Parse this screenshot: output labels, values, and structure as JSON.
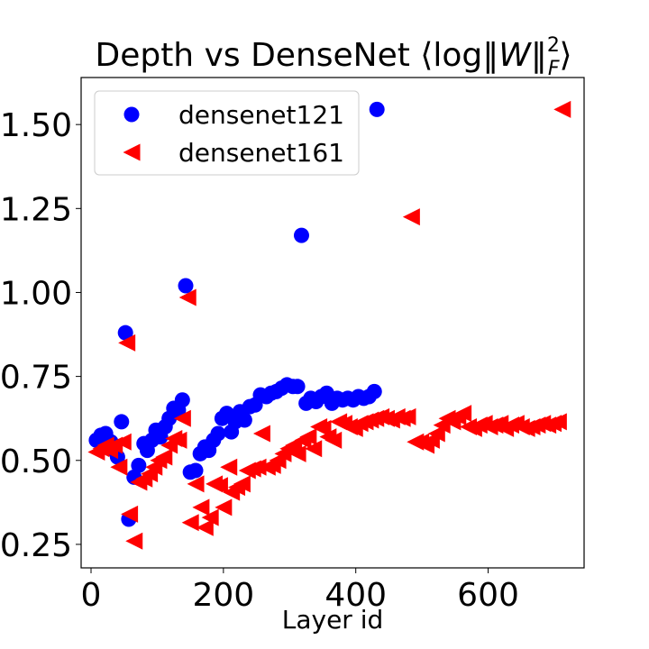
{
  "chart_data": {
    "type": "scatter",
    "title_main": "Depth vs DenseNet ⟨log‖",
    "title_var": "W",
    "title_close": "‖",
    "title_sup": "2",
    "title_sub": "F",
    "title_end": "⟩",
    "xlabel": "Layer id",
    "ylabel": "",
    "xlim": [
      -15,
      745
    ],
    "ylim": [
      0.18,
      1.64
    ],
    "xticks": [
      0,
      200,
      400,
      600
    ],
    "yticks": [
      0.25,
      0.5,
      0.75,
      1.0,
      1.25,
      1.5
    ],
    "ytick_labels": [
      "0.25",
      "0.50",
      "0.75",
      "1.00",
      "1.25",
      "1.50"
    ],
    "legend_position": "upper-left",
    "grid": false,
    "series": [
      {
        "name": "densenet121",
        "marker": "circle",
        "color": "#0000ff",
        "points": [
          [
            8,
            0.56
          ],
          [
            15,
            0.575
          ],
          [
            22,
            0.58
          ],
          [
            30,
            0.555
          ],
          [
            36,
            0.53
          ],
          [
            40,
            0.51
          ],
          [
            46,
            0.615
          ],
          [
            52,
            0.88
          ],
          [
            57,
            0.325
          ],
          [
            65,
            0.45
          ],
          [
            72,
            0.485
          ],
          [
            80,
            0.55
          ],
          [
            85,
            0.53
          ],
          [
            92,
            0.56
          ],
          [
            98,
            0.59
          ],
          [
            105,
            0.57
          ],
          [
            112,
            0.6
          ],
          [
            118,
            0.625
          ],
          [
            125,
            0.655
          ],
          [
            132,
            0.65
          ],
          [
            138,
            0.68
          ],
          [
            143,
            1.02
          ],
          [
            150,
            0.465
          ],
          [
            158,
            0.47
          ],
          [
            165,
            0.52
          ],
          [
            172,
            0.54
          ],
          [
            178,
            0.53
          ],
          [
            185,
            0.56
          ],
          [
            192,
            0.58
          ],
          [
            198,
            0.625
          ],
          [
            205,
            0.64
          ],
          [
            212,
            0.585
          ],
          [
            218,
            0.615
          ],
          [
            225,
            0.645
          ],
          [
            232,
            0.62
          ],
          [
            240,
            0.66
          ],
          [
            248,
            0.665
          ],
          [
            256,
            0.695
          ],
          [
            265,
            0.69
          ],
          [
            272,
            0.7
          ],
          [
            280,
            0.705
          ],
          [
            288,
            0.715
          ],
          [
            296,
            0.725
          ],
          [
            305,
            0.72
          ],
          [
            312,
            0.72
          ],
          [
            318,
            1.17
          ],
          [
            325,
            0.67
          ],
          [
            332,
            0.685
          ],
          [
            340,
            0.675
          ],
          [
            348,
            0.69
          ],
          [
            356,
            0.7
          ],
          [
            364,
            0.67
          ],
          [
            372,
            0.685
          ],
          [
            380,
            0.68
          ],
          [
            388,
            0.685
          ],
          [
            396,
            0.68
          ],
          [
            404,
            0.69
          ],
          [
            412,
            0.685
          ],
          [
            420,
            0.69
          ],
          [
            428,
            0.705
          ],
          [
            432,
            1.545
          ]
        ]
      },
      {
        "name": "densenet161",
        "marker": "triangle-left",
        "color": "#ff0000",
        "points": [
          [
            8,
            0.525
          ],
          [
            15,
            0.535
          ],
          [
            22,
            0.545
          ],
          [
            28,
            0.53
          ],
          [
            35,
            0.545
          ],
          [
            42,
            0.48
          ],
          [
            48,
            0.555
          ],
          [
            54,
            0.85
          ],
          [
            58,
            0.34
          ],
          [
            65,
            0.26
          ],
          [
            72,
            0.435
          ],
          [
            80,
            0.445
          ],
          [
            88,
            0.46
          ],
          [
            95,
            0.48
          ],
          [
            102,
            0.5
          ],
          [
            110,
            0.51
          ],
          [
            118,
            0.545
          ],
          [
            125,
            0.565
          ],
          [
            132,
            0.56
          ],
          [
            138,
            0.625
          ],
          [
            146,
            0.985
          ],
          [
            150,
            0.315
          ],
          [
            158,
            0.43
          ],
          [
            166,
            0.36
          ],
          [
            172,
            0.3
          ],
          [
            180,
            0.33
          ],
          [
            186,
            0.43
          ],
          [
            194,
            0.425
          ],
          [
            200,
            0.36
          ],
          [
            208,
            0.48
          ],
          [
            212,
            0.405
          ],
          [
            220,
            0.42
          ],
          [
            228,
            0.43
          ],
          [
            236,
            0.47
          ],
          [
            244,
            0.475
          ],
          [
            252,
            0.48
          ],
          [
            258,
            0.58
          ],
          [
            266,
            0.48
          ],
          [
            274,
            0.485
          ],
          [
            282,
            0.5
          ],
          [
            290,
            0.52
          ],
          [
            298,
            0.535
          ],
          [
            306,
            0.545
          ],
          [
            312,
            0.52
          ],
          [
            320,
            0.56
          ],
          [
            328,
            0.57
          ],
          [
            336,
            0.535
          ],
          [
            344,
            0.6
          ],
          [
            350,
            0.595
          ],
          [
            358,
            0.57
          ],
          [
            366,
            0.56
          ],
          [
            374,
            0.615
          ],
          [
            382,
            0.61
          ],
          [
            390,
            0.6
          ],
          [
            398,
            0.595
          ],
          [
            406,
            0.61
          ],
          [
            414,
            0.615
          ],
          [
            422,
            0.62
          ],
          [
            430,
            0.625
          ],
          [
            438,
            0.63
          ],
          [
            446,
            0.625
          ],
          [
            454,
            0.62
          ],
          [
            462,
            0.63
          ],
          [
            470,
            0.625
          ],
          [
            478,
            0.63
          ],
          [
            484,
            1.225
          ],
          [
            490,
            0.555
          ],
          [
            498,
            0.555
          ],
          [
            506,
            0.545
          ],
          [
            514,
            0.56
          ],
          [
            522,
            0.58
          ],
          [
            530,
            0.605
          ],
          [
            538,
            0.625
          ],
          [
            546,
            0.615
          ],
          [
            554,
            0.63
          ],
          [
            562,
            0.64
          ],
          [
            570,
            0.6
          ],
          [
            578,
            0.595
          ],
          [
            586,
            0.605
          ],
          [
            594,
            0.61
          ],
          [
            602,
            0.6
          ],
          [
            610,
            0.605
          ],
          [
            618,
            0.61
          ],
          [
            626,
            0.595
          ],
          [
            634,
            0.605
          ],
          [
            642,
            0.61
          ],
          [
            650,
            0.6
          ],
          [
            658,
            0.595
          ],
          [
            666,
            0.6
          ],
          [
            674,
            0.605
          ],
          [
            682,
            0.61
          ],
          [
            690,
            0.605
          ],
          [
            698,
            0.61
          ],
          [
            706,
            0.615
          ],
          [
            712,
            1.545
          ]
        ]
      }
    ]
  }
}
